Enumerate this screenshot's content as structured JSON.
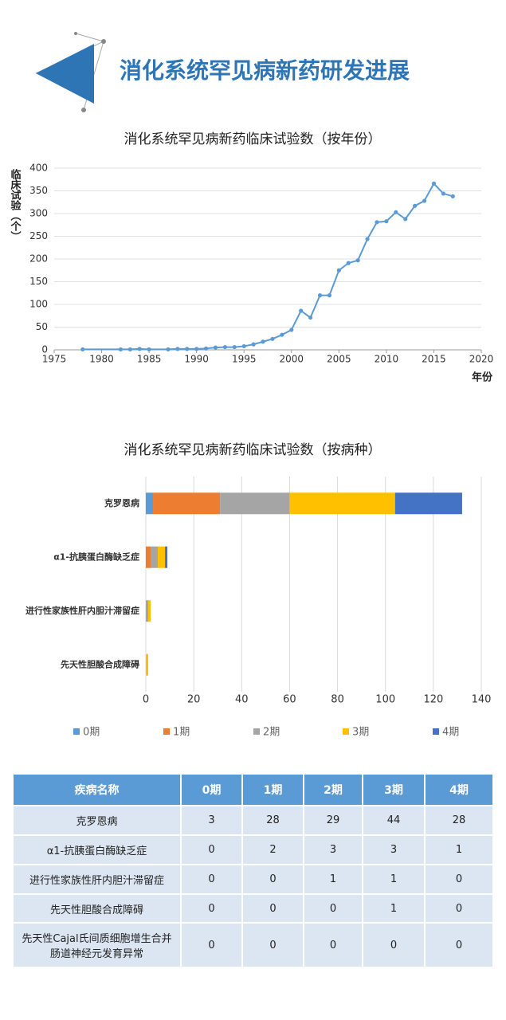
{
  "header": {
    "title": "消化系统罕见病新药研发进展"
  },
  "chart_data": [
    {
      "type": "line",
      "title": "消化系统罕见病新药临床试验数（按年份）",
      "y_label": "临床试验（个）",
      "x_label": "年份",
      "color": "#5b9bd5",
      "grid": true,
      "markers": true,
      "x": [
        1978,
        1982,
        1983,
        1984,
        1985,
        1987,
        1988,
        1989,
        1990,
        1991,
        1992,
        1993,
        1994,
        1995,
        1996,
        1997,
        1998,
        1999,
        2000,
        2001,
        2002,
        2003,
        2004,
        2005,
        2006,
        2007,
        2008,
        2009,
        2010,
        2011,
        2012,
        2013,
        2014,
        2015,
        2016,
        2017
      ],
      "values": [
        1,
        1,
        1,
        2,
        1,
        1,
        2,
        2,
        2,
        3,
        5,
        6,
        6,
        8,
        12,
        18,
        24,
        33,
        44,
        86,
        71,
        120,
        120,
        175,
        191,
        197,
        244,
        281,
        283,
        303,
        288,
        317,
        328,
        366,
        344,
        338
      ],
      "xlim": [
        1975,
        2020
      ],
      "xticks": [
        1975,
        1980,
        1985,
        1990,
        1995,
        2000,
        2005,
        2010,
        2015,
        2020
      ],
      "ylim": [
        0,
        400
      ],
      "yticks": [
        0,
        50,
        100,
        150,
        200,
        250,
        300,
        350,
        400
      ]
    },
    {
      "type": "bar",
      "orientation": "horizontal",
      "stacked": true,
      "title": "消化系统罕见病新药临床试验数（按病种）",
      "grid": true,
      "legend": "bottom",
      "categories": [
        "克罗恩病",
        "α1-抗胰蛋白酶缺乏症",
        "进行性家族性肝内胆汁滞留症",
        "先天性胆酸合成障碍"
      ],
      "series": [
        {
          "name": "0期",
          "color": "#5b9bd5",
          "values": [
            3,
            0,
            0,
            0
          ]
        },
        {
          "name": "1期",
          "color": "#ed7d31",
          "values": [
            28,
            2,
            0,
            0
          ]
        },
        {
          "name": "2期",
          "color": "#a5a5a5",
          "values": [
            29,
            3,
            1,
            0
          ]
        },
        {
          "name": "3期",
          "color": "#ffc000",
          "values": [
            44,
            3,
            1,
            1
          ]
        },
        {
          "name": "4期",
          "color": "#4472c4",
          "values": [
            28,
            1,
            0,
            0
          ]
        }
      ],
      "xlim": [
        0,
        140
      ],
      "xticks": [
        0,
        20,
        40,
        60,
        80,
        100,
        120,
        140
      ]
    }
  ],
  "table": {
    "header": [
      "疾病名称",
      "0期",
      "1期",
      "2期",
      "3期",
      "4期"
    ],
    "rows": [
      [
        "克罗恩病",
        3,
        28,
        29,
        44,
        28
      ],
      [
        "α1-抗胰蛋白酶缺乏症",
        0,
        2,
        3,
        3,
        1
      ],
      [
        "进行性家族性肝内胆汁滞留症",
        0,
        0,
        1,
        1,
        0
      ],
      [
        "先天性胆酸合成障碍",
        0,
        0,
        0,
        1,
        0
      ],
      [
        "先天性Cajal氏间质细胞增生合并肠道神经元发育异常",
        0,
        0,
        0,
        0,
        0
      ]
    ]
  }
}
